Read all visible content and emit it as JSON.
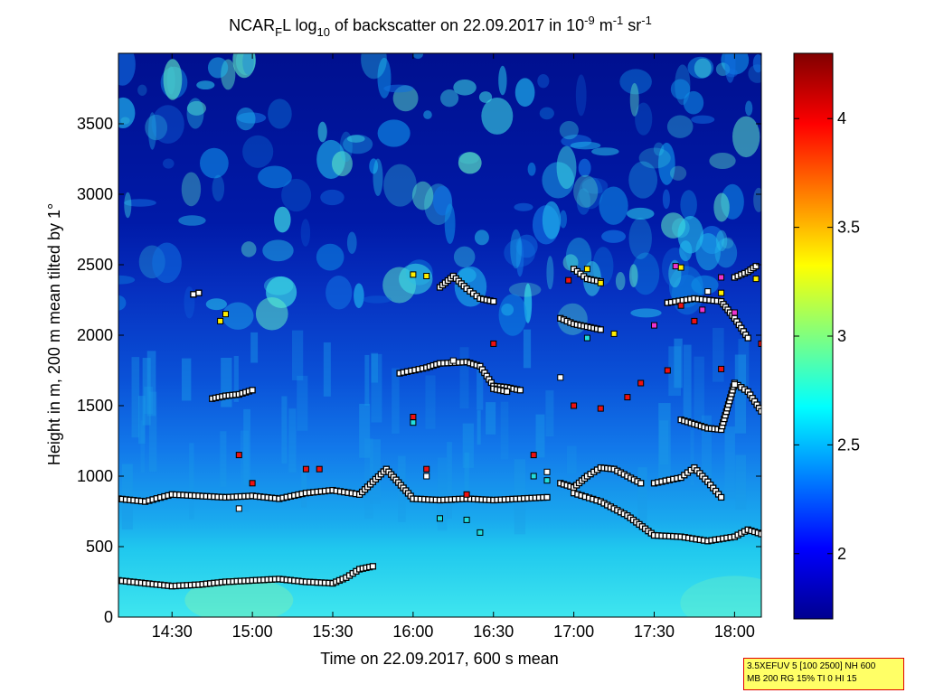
{
  "chart_data": {
    "type": "heatmap",
    "title_parts": [
      "NCAR",
      "F",
      "L log",
      "10",
      " of backscatter on 22.09.2017 in 10",
      "-9",
      " m",
      "-1",
      " sr",
      "-1"
    ],
    "xlabel": "Time on 22.09.2017, 600 s mean",
    "ylabel": "Height in m, 200 m mean tilted by 1°",
    "xlim": [
      "14:10",
      "18:10"
    ],
    "ylim": [
      0,
      4000
    ],
    "x_ticks": [
      "14:30",
      "15:00",
      "15:30",
      "16:00",
      "16:30",
      "17:00",
      "17:30",
      "18:00"
    ],
    "y_ticks": [
      0,
      500,
      1000,
      1500,
      2000,
      2500,
      3000,
      3500
    ],
    "colorbar": {
      "range": [
        1.7,
        4.3
      ],
      "ticks": [
        "2",
        "2.5",
        "3",
        "3.5",
        "4"
      ],
      "colormap": "jet"
    },
    "layer_series": [
      {
        "points": [
          [
            "14:10",
            840
          ],
          [
            "14:20",
            820
          ],
          [
            "14:30",
            870
          ],
          [
            "14:40",
            860
          ],
          [
            "14:50",
            850
          ],
          [
            "15:00",
            860
          ],
          [
            "15:10",
            840
          ],
          [
            "15:20",
            880
          ],
          [
            "15:30",
            900
          ],
          [
            "15:40",
            870
          ],
          [
            "15:50",
            1050
          ],
          [
            "16:00",
            840
          ],
          [
            "16:10",
            830
          ],
          [
            "16:20",
            840
          ],
          [
            "16:30",
            830
          ],
          [
            "16:40",
            840
          ],
          [
            "16:50",
            850
          ]
        ]
      },
      {
        "points": [
          [
            "14:10",
            260
          ],
          [
            "14:20",
            240
          ],
          [
            "14:30",
            220
          ],
          [
            "14:40",
            230
          ],
          [
            "14:50",
            250
          ],
          [
            "15:00",
            260
          ],
          [
            "15:10",
            270
          ],
          [
            "15:20",
            250
          ],
          [
            "15:30",
            240
          ],
          [
            "15:35",
            280
          ],
          [
            "15:40",
            340
          ],
          [
            "15:45",
            360
          ]
        ]
      },
      {
        "points": [
          [
            "16:55",
            950
          ],
          [
            "17:00",
            920
          ],
          [
            "17:05",
            1000
          ],
          [
            "17:10",
            1060
          ],
          [
            "17:15",
            1050
          ],
          [
            "17:20",
            1000
          ],
          [
            "17:25",
            950
          ]
        ]
      },
      {
        "points": [
          [
            "17:00",
            880
          ],
          [
            "17:10",
            820
          ],
          [
            "17:20",
            720
          ],
          [
            "17:30",
            580
          ],
          [
            "17:40",
            570
          ],
          [
            "17:50",
            540
          ],
          [
            "18:00",
            570
          ],
          [
            "18:05",
            620
          ],
          [
            "18:10",
            590
          ]
        ]
      },
      {
        "points": [
          [
            "17:30",
            950
          ],
          [
            "17:40",
            990
          ],
          [
            "17:45",
            1060
          ],
          [
            "17:50",
            960
          ],
          [
            "17:55",
            850
          ]
        ]
      },
      {
        "points": [
          [
            "15:55",
            1730
          ],
          [
            "16:05",
            1770
          ],
          [
            "16:10",
            1800
          ],
          [
            "16:20",
            1810
          ],
          [
            "16:25",
            1780
          ],
          [
            "16:30",
            1640
          ],
          [
            "16:35",
            1630
          ],
          [
            "16:40",
            1610
          ]
        ]
      },
      {
        "points": [
          [
            "16:55",
            2120
          ],
          [
            "17:00",
            2080
          ],
          [
            "17:05",
            2060
          ],
          [
            "17:10",
            2040
          ]
        ]
      },
      {
        "points": [
          [
            "17:35",
            2230
          ],
          [
            "17:45",
            2260
          ],
          [
            "17:55",
            2240
          ],
          [
            "18:00",
            2120
          ],
          [
            "18:05",
            1980
          ]
        ]
      },
      {
        "points": [
          [
            "17:40",
            1400
          ],
          [
            "17:45",
            1370
          ],
          [
            "17:50",
            1340
          ],
          [
            "17:55",
            1330
          ],
          [
            "18:00",
            1660
          ],
          [
            "18:05",
            1600
          ],
          [
            "18:10",
            1460
          ]
        ]
      },
      {
        "points": [
          [
            "18:00",
            2410
          ],
          [
            "18:05",
            2450
          ],
          [
            "18:08",
            2490
          ]
        ]
      },
      {
        "points": [
          [
            "16:10",
            2340
          ],
          [
            "16:15",
            2420
          ],
          [
            "16:20",
            2330
          ],
          [
            "16:25",
            2260
          ],
          [
            "16:30",
            2240
          ]
        ]
      },
      {
        "points": [
          [
            "17:00",
            2470
          ],
          [
            "17:05",
            2400
          ],
          [
            "17:10",
            2380
          ]
        ]
      },
      {
        "points": [
          [
            "14:38",
            2290
          ],
          [
            "14:40",
            2300
          ]
        ]
      },
      {
        "points": [
          [
            "14:45",
            1550
          ],
          [
            "14:50",
            1570
          ],
          [
            "14:55",
            1580
          ],
          [
            "15:00",
            1610
          ]
        ]
      },
      {
        "points": [
          [
            "16:30",
            1620
          ],
          [
            "16:35",
            1600
          ]
        ]
      }
    ],
    "scatter_series": [
      {
        "color": "#ee1111",
        "points": [
          [
            "14:55",
            1150
          ],
          [
            "15:00",
            950
          ],
          [
            "15:20",
            1050
          ],
          [
            "15:25",
            1050
          ],
          [
            "16:00",
            1420
          ],
          [
            "16:05",
            1050
          ],
          [
            "16:20",
            870
          ],
          [
            "16:30",
            1940
          ],
          [
            "16:45",
            1150
          ],
          [
            "17:00",
            1500
          ],
          [
            "17:10",
            1480
          ],
          [
            "17:20",
            1560
          ],
          [
            "17:25",
            1660
          ],
          [
            "17:35",
            1750
          ],
          [
            "17:40",
            2210
          ],
          [
            "17:45",
            2100
          ],
          [
            "17:55",
            1760
          ],
          [
            "16:58",
            2390
          ],
          [
            "18:10",
            1940
          ]
        ]
      },
      {
        "color": "#ffee00",
        "points": [
          [
            "14:50",
            2150
          ],
          [
            "14:48",
            2100
          ],
          [
            "16:00",
            2430
          ],
          [
            "16:05",
            2420
          ],
          [
            "17:05",
            2470
          ],
          [
            "17:10",
            2370
          ],
          [
            "17:15",
            2010
          ],
          [
            "17:40",
            2480
          ],
          [
            "17:55",
            2300
          ],
          [
            "18:08",
            2400
          ]
        ]
      },
      {
        "color": "#ffffff",
        "points": [
          [
            "14:55",
            770
          ],
          [
            "16:05",
            1000
          ],
          [
            "16:15",
            1820
          ],
          [
            "16:55",
            1700
          ],
          [
            "16:50",
            1030
          ],
          [
            "17:50",
            2310
          ],
          [
            "18:00",
            1650
          ]
        ]
      },
      {
        "color": "#22dddd",
        "points": [
          [
            "16:00",
            1380
          ],
          [
            "16:10",
            700
          ],
          [
            "16:20",
            690
          ],
          [
            "16:25",
            600
          ],
          [
            "16:45",
            1000
          ],
          [
            "16:50",
            970
          ],
          [
            "17:05",
            1980
          ]
        ]
      },
      {
        "color": "#ee33cc",
        "points": [
          [
            "17:30",
            2070
          ],
          [
            "17:38",
            2490
          ],
          [
            "17:48",
            2180
          ],
          [
            "17:55",
            2410
          ],
          [
            "18:00",
            2160
          ]
        ]
      }
    ]
  },
  "param_box": {
    "line1": "3.5XEFUV 5 [100 2500] NH 600",
    "line2": "MB 200 RG 15% TI 0 HI 15"
  }
}
